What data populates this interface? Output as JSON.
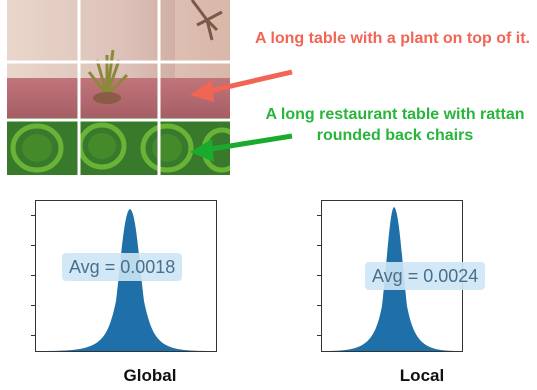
{
  "captions": {
    "top": "A long table with a plant on top of it.",
    "bottom": "A long restaurant table with rattan rounded back chairs"
  },
  "colors": {
    "top_caption": "#f26454",
    "bottom_caption": "#27b53a",
    "top_arrow": "#f26454",
    "bottom_arrow": "#1aab2e",
    "histogram_fill": "#1f6fa8",
    "avg_box": "#cde5f5"
  },
  "grid": {
    "rows": 3,
    "cols": 3
  },
  "chart_data": [
    {
      "type": "area",
      "title": "Global",
      "annotation": "Avg = 0.0018",
      "distribution": "bell-shaped",
      "avg": 0.0018
    },
    {
      "type": "area",
      "title": "Local",
      "annotation": "Avg = 0.0024",
      "distribution": "bell-shaped",
      "avg": 0.0024
    }
  ]
}
